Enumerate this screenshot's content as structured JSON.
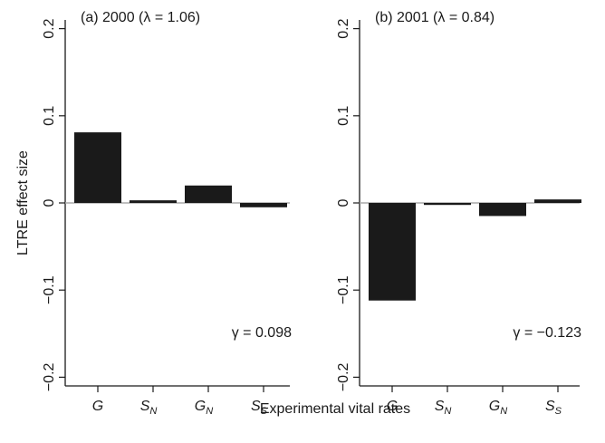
{
  "figure": {
    "ylabel": "LTRE effect size",
    "xlabel": "Experimental vital rates"
  },
  "chart_data": [
    {
      "type": "bar",
      "title": "(a) 2000 (λ = 1.06)",
      "annotation": "γ = 0.098",
      "categories": [
        "G",
        "S_N",
        "G_N",
        "S_S"
      ],
      "category_labels": [
        {
          "base": "G",
          "sub": ""
        },
        {
          "base": "S",
          "sub": "N"
        },
        {
          "base": "G",
          "sub": "N"
        },
        {
          "base": "S",
          "sub": "S"
        }
      ],
      "values": [
        0.081,
        0.003,
        0.02,
        -0.005
      ],
      "ylim": [
        -0.21,
        0.21
      ],
      "yticks": [
        -0.2,
        -0.1,
        0,
        0.1,
        0.2
      ],
      "ytick_labels": [
        "−0.2",
        "−0.1",
        "0",
        "0.1",
        "0.2"
      ],
      "xlabel": "Experimental vital rates",
      "ylabel": "LTRE effect size",
      "bar_color": "#1a1a1a",
      "zero_line_color": "#aaaaaa"
    },
    {
      "type": "bar",
      "title": "(b) 2001 (λ = 0.84)",
      "annotation": "γ = −0.123",
      "categories": [
        "G",
        "S_N",
        "G_N",
        "S_S"
      ],
      "category_labels": [
        {
          "base": "G",
          "sub": ""
        },
        {
          "base": "S",
          "sub": "N"
        },
        {
          "base": "G",
          "sub": "N"
        },
        {
          "base": "S",
          "sub": "S"
        }
      ],
      "values": [
        -0.112,
        -0.002,
        -0.015,
        0.004
      ],
      "ylim": [
        -0.21,
        0.21
      ],
      "yticks": [
        -0.2,
        -0.1,
        0,
        0.1,
        0.2
      ],
      "ytick_labels": [
        "−0.2",
        "−0.1",
        "0",
        "0.1",
        "0.2"
      ],
      "xlabel": "Experimental vital rates",
      "ylabel": "",
      "bar_color": "#1a1a1a",
      "zero_line_color": "#aaaaaa"
    }
  ]
}
